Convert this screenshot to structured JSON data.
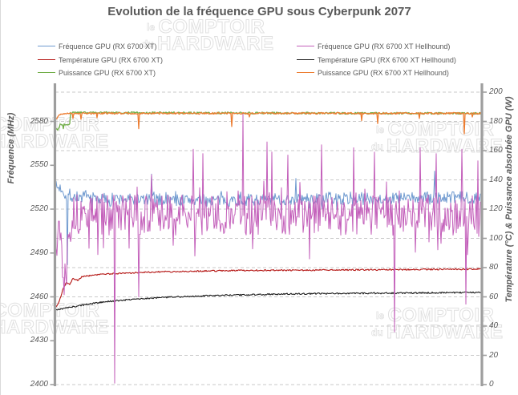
{
  "title": "Evolution de la fréquence GPU sous Cyberpunk 2077",
  "watermark": {
    "small1": "le",
    "big1": "COMPTOIR",
    "small2": "du",
    "big2": "HARDWARE"
  },
  "legend": {
    "columns": [
      [
        {
          "label": "Fréquence GPU (RX 6700 XT)",
          "color": "#6e99cf"
        },
        {
          "label": "Température GPU (RX 6700 XT)",
          "color": "#b41412"
        },
        {
          "label": "Puissance GPU (RX 6700 XT)",
          "color": "#70ad47"
        }
      ],
      [
        {
          "label": "Fréquence GPU (RX 6700 XT Hellhound)",
          "color": "#c35fba"
        },
        {
          "label": "Température GPU (RX 6700 XT Hellhound)",
          "color": "#1a1a1a"
        },
        {
          "label": "Puissance GPU (RX 6700 XT Hellhound)",
          "color": "#ed7d31"
        }
      ]
    ]
  },
  "chart_data": {
    "type": "line",
    "title": "Evolution de la fréquence GPU sous Cyberpunk 2077",
    "x_axis": {
      "label": "",
      "tick_labels_visible": false,
      "samples": 532
    },
    "y_left": {
      "label": "Fréquence (MHz)",
      "min": 2400,
      "max": 2600,
      "ticks": [
        2400,
        2430,
        2460,
        2490,
        2520,
        2550,
        2580
      ]
    },
    "y_right": {
      "label": "Température (°C) & Puissance absorbée GPU (W)",
      "min": 0,
      "max": 200,
      "ticks": [
        0,
        20,
        40,
        60,
        80,
        100,
        120,
        140,
        160,
        180,
        200
      ],
      "gridlines": "dashed horizontal at every tick"
    },
    "legend_position": "top, two columns",
    "series": [
      {
        "name": "Fréquence GPU (RX 6700 XT)",
        "unit": "MHz",
        "axis": "left",
        "color": "#6e99cf",
        "width": 1,
        "seed": 7,
        "noise": 4.2,
        "burst_p": 0.06,
        "burst_mult": 1.8,
        "anchors": [
          [
            0,
            2535
          ],
          [
            9,
            2534
          ],
          [
            13,
            2529
          ],
          [
            60,
            2527
          ],
          [
            200,
            2526
          ],
          [
            350,
            2527
          ],
          [
            531,
            2528
          ]
        ],
        "spikes": [
          [
            15,
            2482
          ],
          [
            120,
            2544
          ],
          [
            300,
            2541
          ],
          [
            473,
            2546
          ]
        ]
      },
      {
        "name": "Fréquence GPU (RX 6700 XT Hellhound)",
        "unit": "MHz",
        "axis": "left",
        "color": "#c35fba",
        "width": 1,
        "seed": 13,
        "noise": 14,
        "burst_p": 0.1,
        "burst_mult": 2.1,
        "anchors": [
          [
            0,
            2521
          ],
          [
            7,
            2502
          ],
          [
            11,
            2466
          ],
          [
            15,
            2505
          ],
          [
            22,
            2516
          ],
          [
            531,
            2516
          ]
        ],
        "spikes": [
          [
            74,
            2401
          ],
          [
            104,
            2460
          ],
          [
            172,
            2561
          ],
          [
            184,
            2558
          ],
          [
            234,
            2585
          ],
          [
            264,
            2566
          ],
          [
            270,
            2559
          ],
          [
            290,
            2557
          ],
          [
            317,
            2486
          ],
          [
            332,
            2564
          ],
          [
            372,
            2562
          ],
          [
            398,
            2559
          ],
          [
            423,
            2436
          ],
          [
            455,
            2562
          ],
          [
            475,
            2558
          ],
          [
            507,
            2561
          ],
          [
            512,
            2455
          ],
          [
            527,
            2553
          ]
        ]
      },
      {
        "name": "Température GPU (RX 6700 XT)",
        "unit": "°C",
        "axis": "right",
        "color": "#b41412",
        "width": 1.1,
        "seed": 21,
        "noise": 0.5,
        "burst_p": 0,
        "burst_mult": 1,
        "anchors": [
          [
            0,
            53
          ],
          [
            3,
            54.5
          ],
          [
            6,
            59
          ],
          [
            10,
            66
          ],
          [
            14,
            70
          ],
          [
            18,
            68.5
          ],
          [
            22,
            72.5
          ],
          [
            28,
            71.5
          ],
          [
            34,
            74
          ],
          [
            60,
            75.5
          ],
          [
            120,
            77
          ],
          [
            220,
            78
          ],
          [
            400,
            78.5
          ],
          [
            531,
            79
          ]
        ],
        "spikes": []
      },
      {
        "name": "Température GPU (RX 6700 XT Hellhound)",
        "unit": "°C",
        "axis": "right",
        "color": "#1a1a1a",
        "width": 1.1,
        "seed": 33,
        "noise": 0.5,
        "burst_p": 0,
        "burst_mult": 1,
        "anchors": [
          [
            0,
            51
          ],
          [
            15,
            52.5
          ],
          [
            35,
            54.5
          ],
          [
            60,
            56.5
          ],
          [
            100,
            58.5
          ],
          [
            150,
            60
          ],
          [
            210,
            61
          ],
          [
            290,
            62
          ],
          [
            400,
            62.5
          ],
          [
            531,
            63
          ]
        ],
        "spikes": []
      },
      {
        "name": "Puissance GPU (RX 6700 XT)",
        "unit": "W",
        "axis": "right",
        "color": "#70ad47",
        "width": 1.3,
        "seed": 44,
        "noise": 0.7,
        "burst_p": 0,
        "burst_mult": 1,
        "anchors": [
          [
            0,
            176
          ],
          [
            3,
            174
          ],
          [
            6,
            177.5
          ],
          [
            18,
            178
          ],
          [
            19,
            186
          ],
          [
            531,
            185.4
          ]
        ],
        "spikes": [
          [
            10,
            175
          ]
        ]
      },
      {
        "name": "Puissance GPU (RX 6700 XT Hellhound)",
        "unit": "W",
        "axis": "right",
        "color": "#ed7d31",
        "width": 1.3,
        "seed": 55,
        "noise": 0.6,
        "burst_p": 0,
        "burst_mult": 1,
        "anchors": [
          [
            0,
            181
          ],
          [
            5,
            184.5
          ],
          [
            10,
            185.5
          ],
          [
            531,
            185.5
          ]
        ],
        "spikes": [
          [
            22,
            182
          ],
          [
            32,
            181.5
          ],
          [
            52,
            182.5
          ],
          [
            104,
            175
          ],
          [
            220,
            176.5
          ],
          [
            242,
            183
          ],
          [
            382,
            180.5
          ],
          [
            402,
            178.5
          ],
          [
            454,
            182
          ],
          [
            510,
            171.5
          ],
          [
            520,
            183
          ]
        ]
      }
    ]
  }
}
